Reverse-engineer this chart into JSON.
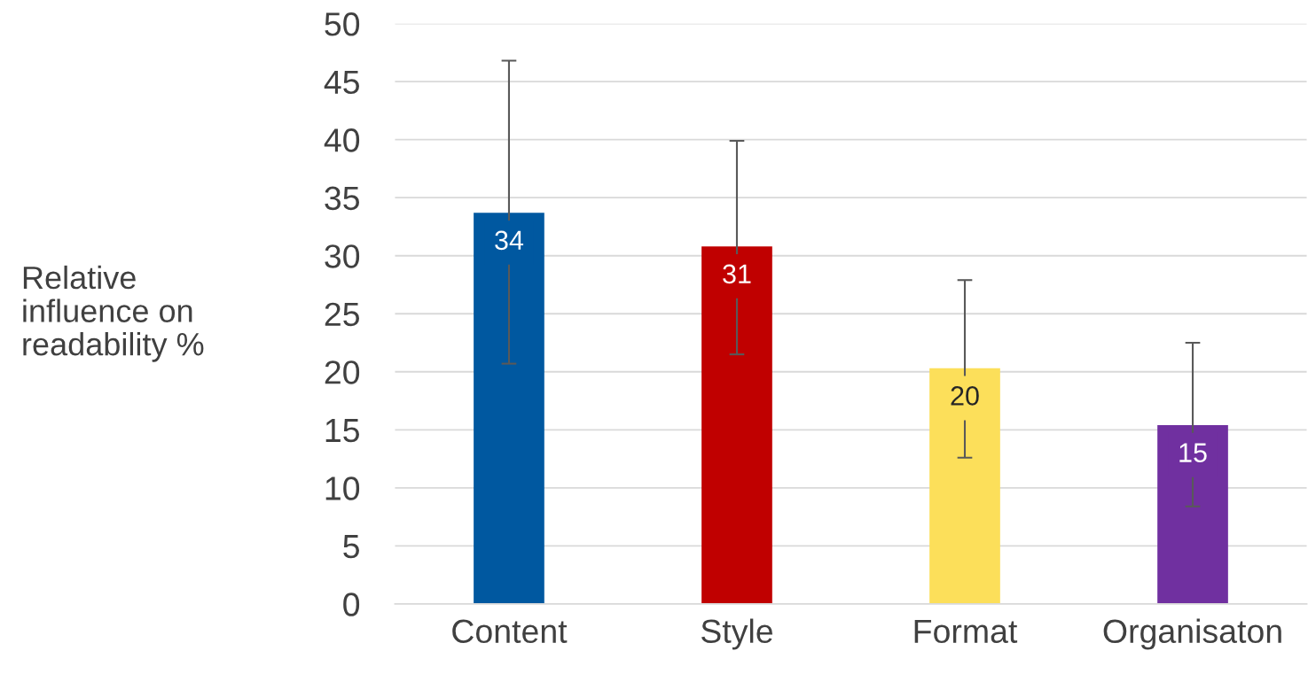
{
  "chart_data": {
    "type": "bar",
    "categories": [
      "Content",
      "Style",
      "Format",
      "Organisaton"
    ],
    "values": [
      33.7,
      30.8,
      20.3,
      15.4
    ],
    "value_labels": [
      "34",
      "31",
      "20",
      "15"
    ],
    "errors": [
      [
        20.7,
        46.8
      ],
      [
        21.5,
        39.9
      ],
      [
        12.6,
        27.9
      ],
      [
        8.4,
        22.5
      ]
    ],
    "colors": [
      "#0058a0",
      "#c00000",
      "#fcdf5a",
      "#7030a0"
    ],
    "ylabel": "Relative\ninfluence on\nreadability %",
    "ylim": [
      0,
      50
    ],
    "yticks": [
      0,
      5,
      10,
      15,
      20,
      25,
      30,
      35,
      40,
      45,
      50
    ],
    "grid": "y",
    "legend": false
  }
}
